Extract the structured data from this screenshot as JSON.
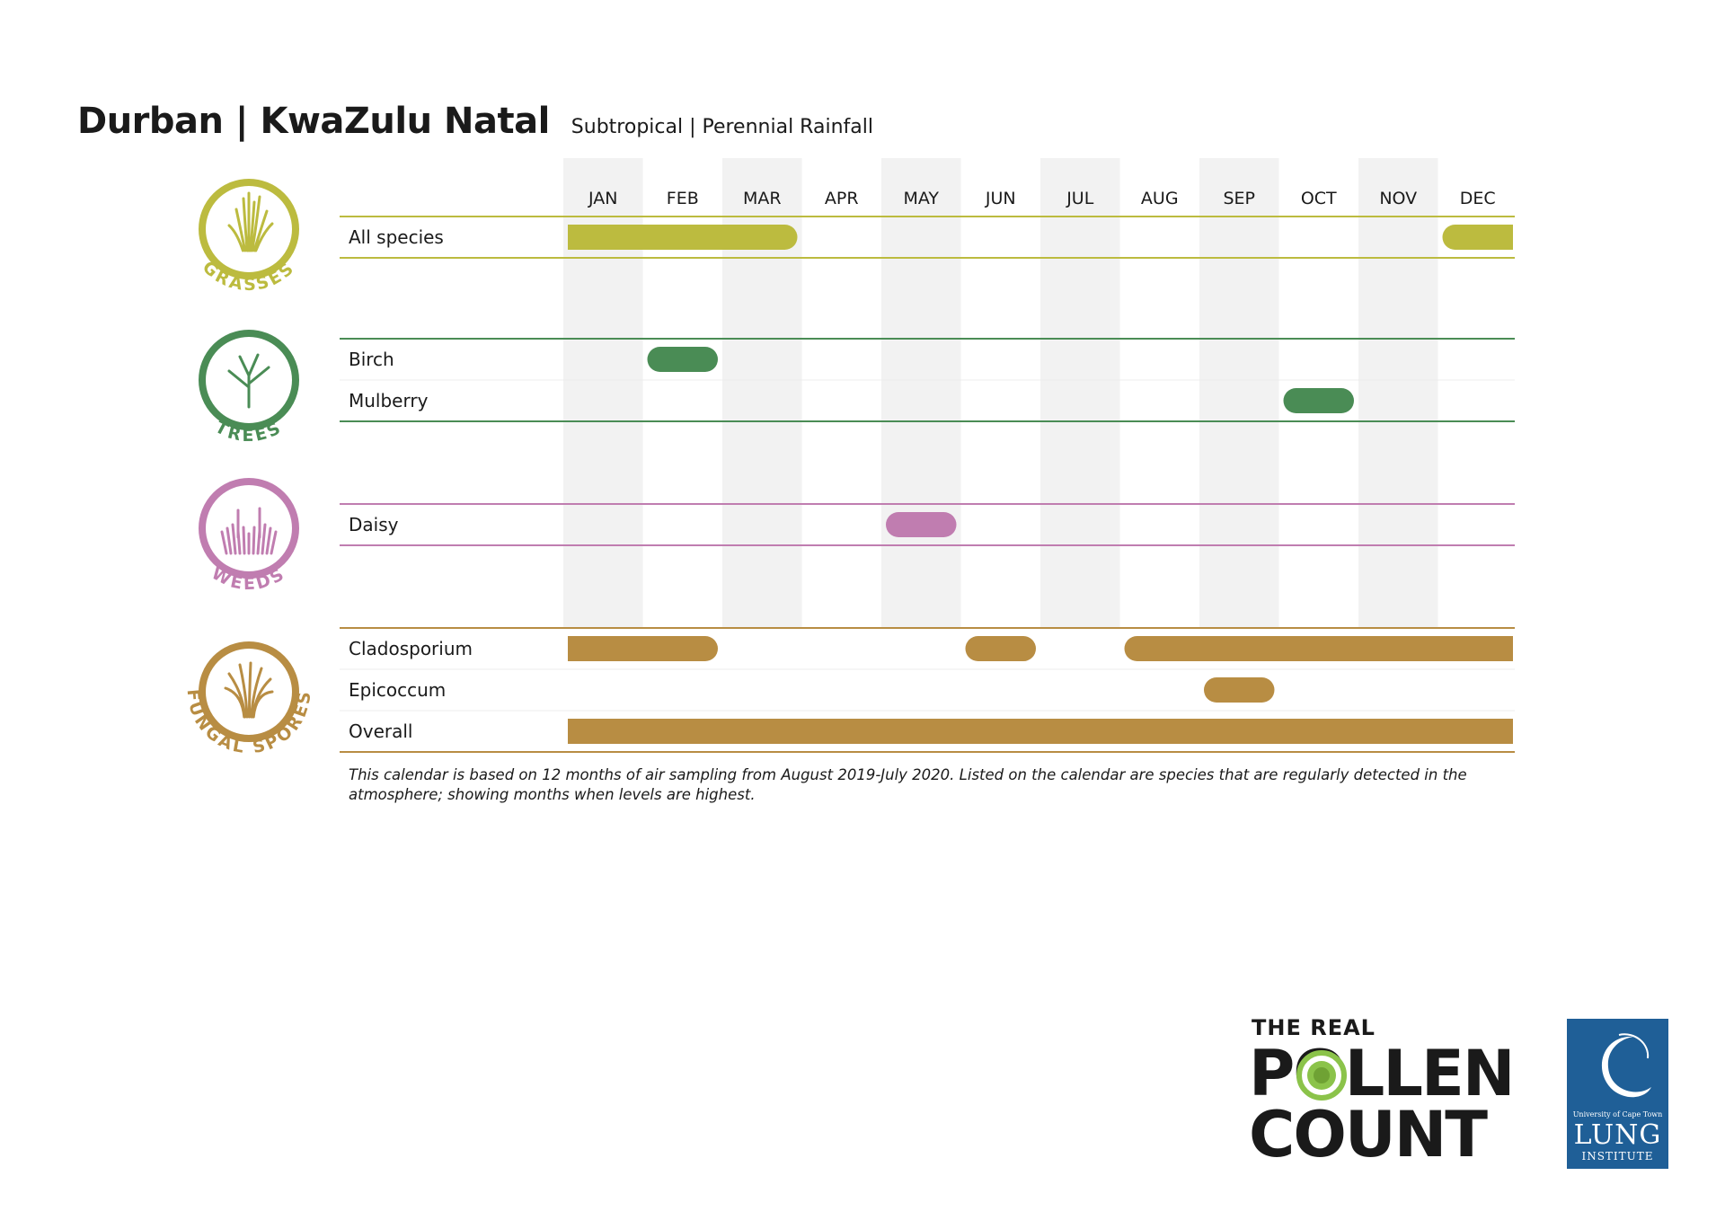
{
  "header": {
    "title": "Durban | KwaZulu Natal",
    "subtitle": "Subtropical | Perennial Rainfall"
  },
  "chart_data": {
    "type": "table",
    "months": [
      "JAN",
      "FEB",
      "MAR",
      "APR",
      "MAY",
      "JUN",
      "JUL",
      "AUG",
      "SEP",
      "OCT",
      "NOV",
      "DEC"
    ],
    "groups": [
      {
        "category": "GRASSES",
        "color": "#bcbb3f",
        "rows": [
          {
            "label": "All species",
            "periods": [
              [
                1,
                3
              ],
              [
                12,
                12
              ]
            ]
          }
        ]
      },
      {
        "category": "TREES",
        "color": "#4a8c55",
        "rows": [
          {
            "label": "Birch",
            "periods": [
              [
                2,
                2
              ]
            ]
          },
          {
            "label": "Mulberry",
            "periods": [
              [
                10,
                10
              ]
            ]
          }
        ]
      },
      {
        "category": "WEEDS",
        "color": "#c07db0",
        "rows": [
          {
            "label": "Daisy",
            "periods": [
              [
                5,
                5
              ]
            ]
          }
        ]
      },
      {
        "category": "FUNGAL SPORES",
        "color": "#b88d43",
        "rows": [
          {
            "label": "Cladosporium",
            "periods": [
              [
                1,
                2
              ],
              [
                6,
                6
              ],
              [
                8,
                12
              ]
            ]
          },
          {
            "label": "Epicoccum",
            "periods": [
              [
                9,
                9
              ]
            ]
          },
          {
            "label": "Overall",
            "periods": [
              [
                1,
                12
              ]
            ]
          }
        ]
      }
    ],
    "stripe_color": "#f2f2f2"
  },
  "footnote": "This calendar is based on 12 months of air sampling from August 2019-July 2020. Listed on the calendar are species that are regularly detected in the atmosphere; showing months when levels are highest.",
  "logo": {
    "line1": "THE REAL",
    "line2": "POLLEN",
    "line3": "COUNT",
    "icon": "pollen-grain-icon"
  },
  "institute_logo": {
    "line1": "University of Cape Town",
    "line2": "LUNG",
    "line3": "INSTITUTE",
    "icon": "crescent-icon",
    "color": "#1f5f97"
  }
}
